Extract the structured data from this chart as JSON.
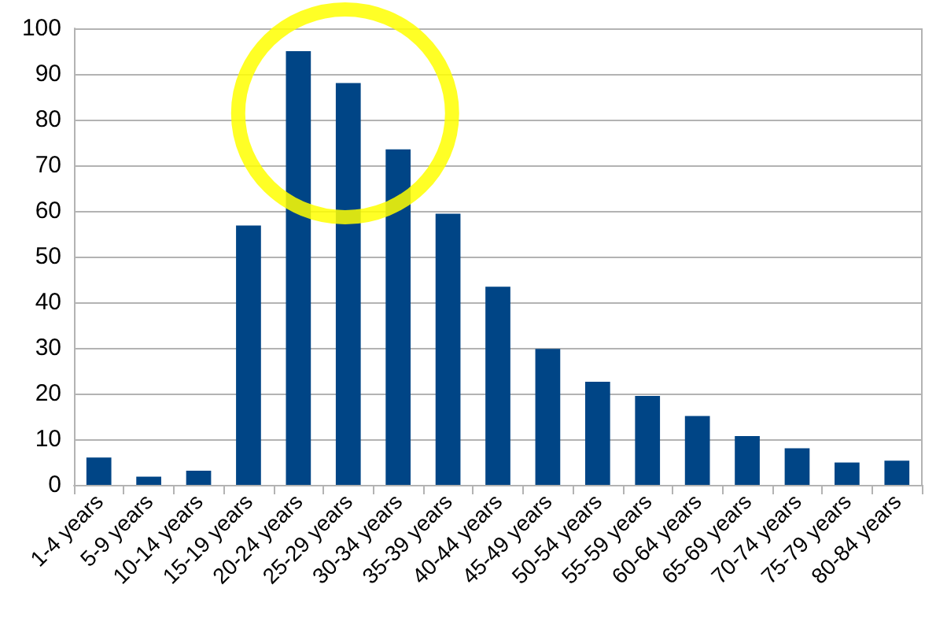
{
  "chart_data": {
    "type": "bar",
    "categories": [
      "1-4 years",
      "5-9 years",
      "10-14 years",
      "15-19 years",
      "20-24 years",
      "25-29 years",
      "30-34 years",
      "35-39 years",
      "40-44 years",
      "45-49 years",
      "50-54 years",
      "55-59 years",
      "60-64 years",
      "65-69 years",
      "70-74 years",
      "75-79 years",
      "80-84 years"
    ],
    "values": [
      6,
      1.8,
      3.1,
      56.8,
      95,
      88,
      73.5,
      59.4,
      43.4,
      29.8,
      22.6,
      19.5,
      15.1,
      10.7,
      8,
      4.9,
      5.3
    ],
    "color": "#004586",
    "ylim": [
      0,
      100
    ],
    "yticks": [
      0,
      10,
      20,
      30,
      40,
      50,
      60,
      70,
      80,
      90,
      100
    ],
    "grid": "y"
  }
}
